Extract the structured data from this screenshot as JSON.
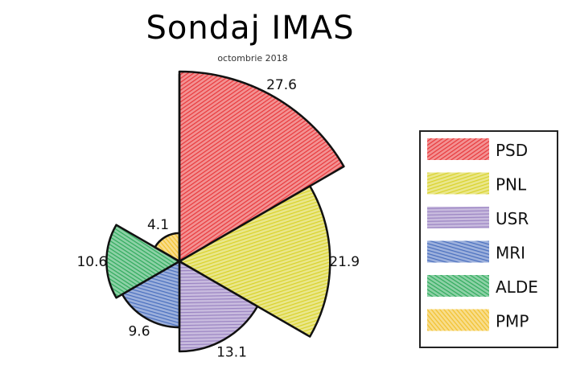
{
  "chart_data": {
    "type": "polar-area",
    "title": "Sondaj IMAS",
    "subtitle": "octombrie 2018",
    "categories": [
      "PSD",
      "PNL",
      "USR",
      "MRI",
      "ALDE",
      "PMP"
    ],
    "values": [
      27.6,
      21.9,
      13.1,
      9.6,
      10.6,
      4.1
    ],
    "colors": [
      "#e8383b",
      "#d9d22b",
      "#9a83c2",
      "#4a6fbe",
      "#2faa5c",
      "#f2c12e"
    ],
    "legend_position": "right"
  }
}
